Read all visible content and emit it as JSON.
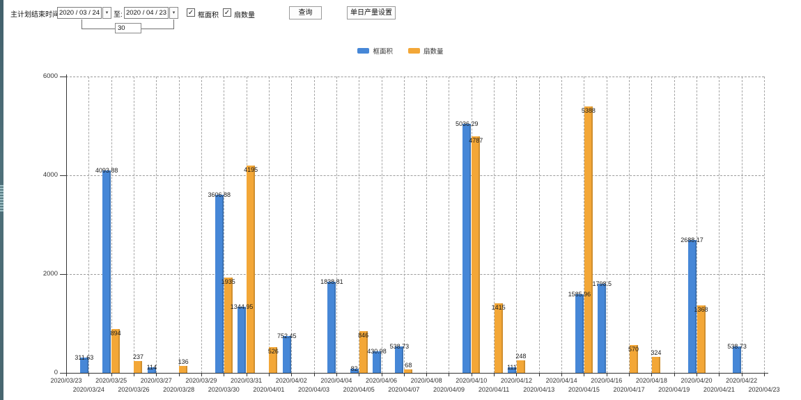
{
  "toolbar": {
    "end_time_label": "主计划结束时间:",
    "date_from": "2020 / 03 / 24",
    "to_label": "至:",
    "date_to": "2020 / 04 / 23",
    "interval_value": "30",
    "checkbox_frame_area": "框面积",
    "checkbox_fan_count": "扇数量",
    "query_button": "查询",
    "daily_output_button": "单日产量设置",
    "dropdown_arrow": "▾",
    "check_glyph": "✓"
  },
  "chart_data": {
    "type": "bar",
    "categories": [
      "2020/03/23",
      "2020/03/24",
      "2020/03/25",
      "2020/03/26",
      "2020/03/27",
      "2020/03/28",
      "2020/03/29",
      "2020/03/30",
      "2020/03/31",
      "2020/04/01",
      "2020/04/02",
      "2020/04/03",
      "2020/04/04",
      "2020/04/05",
      "2020/04/06",
      "2020/04/07",
      "2020/04/08",
      "2020/04/09",
      "2020/04/10",
      "2020/04/11",
      "2020/04/12",
      "2020/04/13",
      "2020/04/14",
      "2020/04/15",
      "2020/04/16",
      "2020/04/17",
      "2020/04/18",
      "2020/04/19",
      "2020/04/20",
      "2020/04/21",
      "2020/04/22",
      "2020/04/23"
    ],
    "series": [
      {
        "name": "框面积",
        "color": "#4687d7",
        "values": [
          null,
          311.63,
          4093.88,
          null,
          114,
          null,
          null,
          3606.88,
          1344.95,
          null,
          752.45,
          null,
          1838.81,
          82,
          430.98,
          538.73,
          null,
          null,
          5036.29,
          null,
          111,
          null,
          null,
          1585.96,
          1798.5,
          null,
          null,
          null,
          2688.17,
          null,
          538.73,
          null
        ]
      },
      {
        "name": "扇数量",
        "color": "#f3a737",
        "values": [
          null,
          null,
          894,
          237,
          null,
          136,
          null,
          1935,
          4195,
          526,
          null,
          null,
          null,
          846,
          null,
          68,
          null,
          null,
          4787,
          1415,
          248,
          null,
          null,
          5388,
          null,
          570,
          324,
          null,
          1368,
          null,
          null,
          null
        ]
      }
    ],
    "ylim": [
      0,
      6000
    ],
    "yticks": [
      0,
      2000,
      4000,
      6000
    ],
    "grid": true,
    "legend_position": "top"
  }
}
